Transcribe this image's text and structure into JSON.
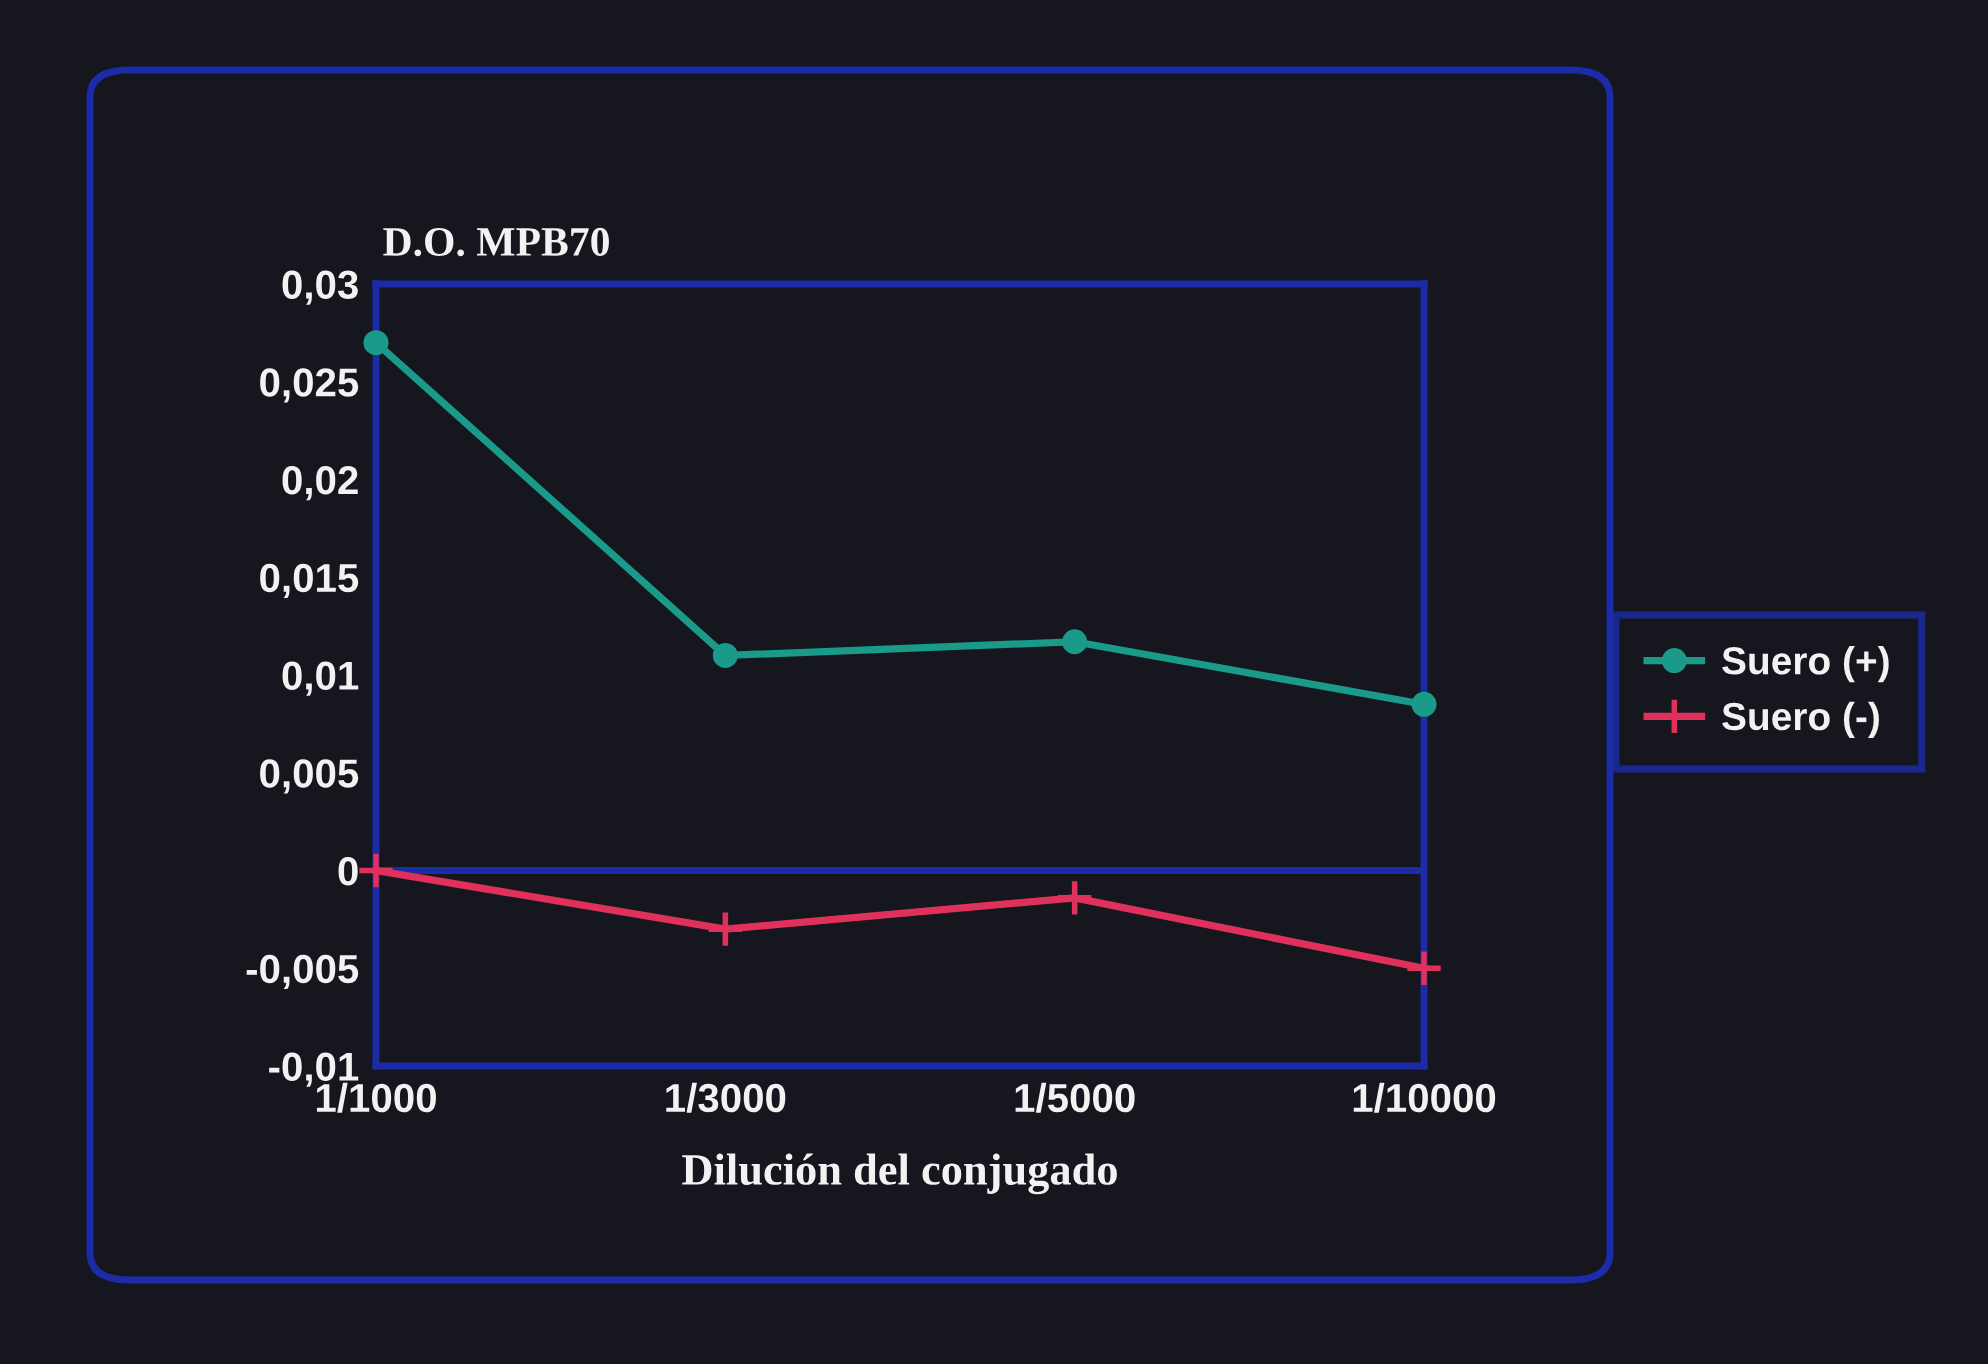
{
  "chart_data": {
    "type": "line",
    "xlabel": "Dilución del conjugado",
    "ylabel": "D.O. MPB70",
    "categories": [
      "1/1000",
      "1/3000",
      "1/5000",
      "1/10000"
    ],
    "series": [
      {
        "name": "Suero (+)",
        "color": "#1a9a88",
        "marker": "circle",
        "values": [
          0.027,
          0.011,
          0.0117,
          0.0085
        ]
      },
      {
        "name": "Suero (-)",
        "color": "#e0305c",
        "marker": "cross",
        "values": [
          0,
          -0.003,
          -0.0014,
          -0.005
        ]
      }
    ],
    "ylim": [
      -0.01,
      0.03
    ],
    "yticks": [
      {
        "value": -0.01,
        "label": "-0,01"
      },
      {
        "value": -0.005,
        "label": "-0,005"
      },
      0,
      {
        "value": 0.005,
        "label": "0,005"
      },
      {
        "value": 0.01,
        "label": "0,01"
      },
      {
        "value": 0.015,
        "label": "0,015"
      },
      {
        "value": 0.02,
        "label": "0,02"
      },
      {
        "value": 0.025,
        "label": "0,025"
      },
      {
        "value": 0.03,
        "label": "0,03"
      }
    ],
    "ref_lines": [
      {
        "axis": "y",
        "value": 0,
        "color": "#1c2ca8"
      }
    ],
    "legend": "right",
    "grid": false,
    "line_style": "solid"
  }
}
